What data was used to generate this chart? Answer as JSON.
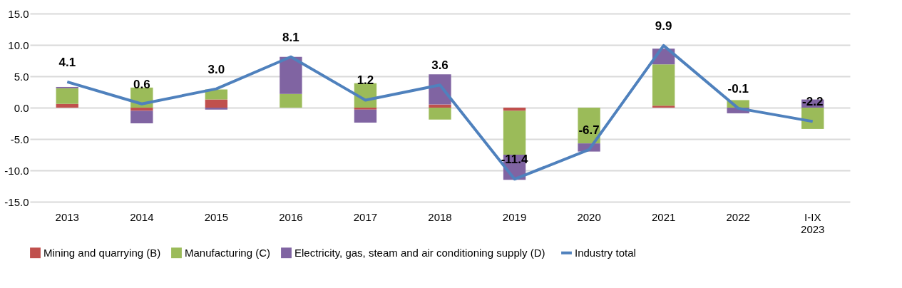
{
  "chart_data": {
    "type": "bar",
    "stacked": true,
    "categories": [
      "2013",
      "2014",
      "2015",
      "2016",
      "2017",
      "2018",
      "2019",
      "2020",
      "2021",
      "2022",
      "I-IX 2023"
    ],
    "series": [
      {
        "name": "Mining and quarrying (B)",
        "color": "#c0504d",
        "values": [
          0.6,
          -0.5,
          1.3,
          0,
          -0.3,
          0.5,
          -0.5,
          0,
          0.3,
          0,
          0
        ]
      },
      {
        "name": "Manufacturing (C)",
        "color": "#9bbb59",
        "values": [
          2.5,
          3.2,
          1.6,
          2.2,
          3.9,
          -1.9,
          -7.0,
          -5.7,
          6.6,
          1.2,
          -3.4
        ]
      },
      {
        "name": "Electricity, gas, steam and air conditioning supply (D)",
        "color": "#8064a2",
        "values": [
          0.2,
          -2.0,
          -0.3,
          5.9,
          -2.1,
          4.8,
          -4.0,
          -1.3,
          2.5,
          -0.9,
          1.3
        ]
      },
      {
        "name": "Industry total",
        "type": "line",
        "color": "#4f81bd",
        "values": [
          4.1,
          0.6,
          3.0,
          8.1,
          1.2,
          3.6,
          -11.4,
          -6.7,
          9.9,
          -0.1,
          -2.2
        ],
        "value_labels": [
          "4.1",
          "0.6",
          "3.0",
          "8.1",
          "1.2",
          "3.6",
          "-11.4",
          "-6.7",
          "9.9",
          "-0.1",
          "-2.2"
        ]
      }
    ],
    "ylim": [
      -15,
      15
    ],
    "yticks": [
      {
        "value": -15,
        "label": "-15.0"
      },
      {
        "value": -10,
        "label": "-10.0"
      },
      {
        "value": -5,
        "label": "-5.0"
      },
      {
        "value": 0,
        "label": "0.0"
      },
      {
        "value": 5,
        "label": "5.0"
      },
      {
        "value": 10,
        "label": "10.0"
      },
      {
        "value": 15,
        "label": "15.0"
      }
    ],
    "grid": "y",
    "legend": "bottom"
  }
}
